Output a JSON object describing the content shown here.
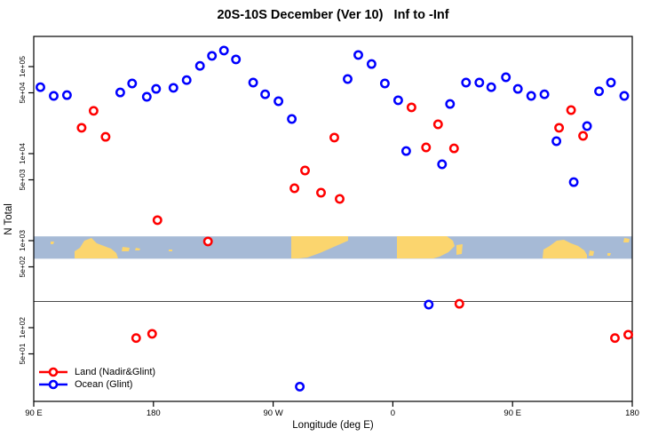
{
  "colors": {
    "background": "#ffffff",
    "axis": "#000000",
    "reference_line": "#4a4a4a",
    "map_ocean": "#a6bad6",
    "map_land": "#fbd56e",
    "land_series": "#ff0000",
    "ocean_series": "#0000ff"
  },
  "chart_data": {
    "type": "scatter",
    "title": "20S-10S December (Ver 10)   Inf to -Inf",
    "xlabel": "Longitude (deg E)",
    "ylabel": "N Total",
    "x_domain": [
      90,
      540
    ],
    "y_scale": "log",
    "y_domain": [
      15,
      220000
    ],
    "grid": false,
    "x_ticks": [
      {
        "pos": 90,
        "label": "90 E"
      },
      {
        "pos": 180,
        "label": "180"
      },
      {
        "pos": 270,
        "label": "90 W"
      },
      {
        "pos": 360,
        "label": "0"
      },
      {
        "pos": 450,
        "label": "90 E"
      },
      {
        "pos": 540,
        "label": "180"
      }
    ],
    "y_ticks": [
      {
        "value": 100000,
        "label": "1e+05"
      },
      {
        "value": 50000,
        "label": "5e+04"
      },
      {
        "value": 10000,
        "label": "1e+04"
      },
      {
        "value": 5000,
        "label": "5e+03"
      },
      {
        "value": 1000,
        "label": "1e+03"
      },
      {
        "value": 500,
        "label": "5e+02"
      },
      {
        "value": 100,
        "label": "1e+02"
      },
      {
        "value": 50,
        "label": "5e+01"
      }
    ],
    "reference_line_value": 200,
    "map_band": {
      "description": "world coastline strip for latitude band 20S-10S",
      "value_top": 1120,
      "value_bottom": 620
    },
    "legend_position": "bottom-left",
    "series": [
      {
        "name": "Land (Nadir&Glint)",
        "color": "#ff0000",
        "points": [
          [
            126,
            19800
          ],
          [
            135,
            31000
          ],
          [
            144,
            15600
          ],
          [
            167,
            76
          ],
          [
            179,
            85
          ],
          [
            183,
            1720
          ],
          [
            221,
            980
          ],
          [
            286,
            4000
          ],
          [
            294,
            6400
          ],
          [
            306,
            3560
          ],
          [
            316,
            15300
          ],
          [
            320,
            3020
          ],
          [
            374,
            34000
          ],
          [
            385,
            11800
          ],
          [
            394,
            21700
          ],
          [
            406,
            11500
          ],
          [
            410,
            188
          ],
          [
            485,
            19800
          ],
          [
            494,
            31600
          ],
          [
            503,
            16000
          ],
          [
            527,
            76
          ],
          [
            537,
            83
          ]
        ]
      },
      {
        "name": "Ocean (Glint)",
        "color": "#0000ff",
        "points": [
          [
            95,
            58000
          ],
          [
            105,
            46000
          ],
          [
            115,
            47000
          ],
          [
            155,
            50500
          ],
          [
            164,
            64000
          ],
          [
            175,
            45000
          ],
          [
            182,
            55500
          ],
          [
            195,
            57000
          ],
          [
            205,
            70000
          ],
          [
            215,
            102000
          ],
          [
            224,
            133000
          ],
          [
            233,
            153000
          ],
          [
            242,
            121000
          ],
          [
            255,
            65500
          ],
          [
            264,
            48000
          ],
          [
            274,
            40000
          ],
          [
            284,
            25000
          ],
          [
            290,
            21
          ],
          [
            326,
            72000
          ],
          [
            334,
            136000
          ],
          [
            344,
            107000
          ],
          [
            354,
            64000
          ],
          [
            364,
            41000
          ],
          [
            370,
            10700
          ],
          [
            387,
            184
          ],
          [
            397,
            7550
          ],
          [
            403,
            37200
          ],
          [
            415,
            65500
          ],
          [
            425,
            65500
          ],
          [
            434,
            58000
          ],
          [
            445,
            75500
          ],
          [
            454,
            55500
          ],
          [
            464,
            46000
          ],
          [
            474,
            48000
          ],
          [
            483,
            13900
          ],
          [
            496,
            4700
          ],
          [
            506,
            20700
          ],
          [
            515,
            52000
          ],
          [
            524,
            65500
          ],
          [
            534,
            46000
          ]
        ]
      }
    ]
  }
}
